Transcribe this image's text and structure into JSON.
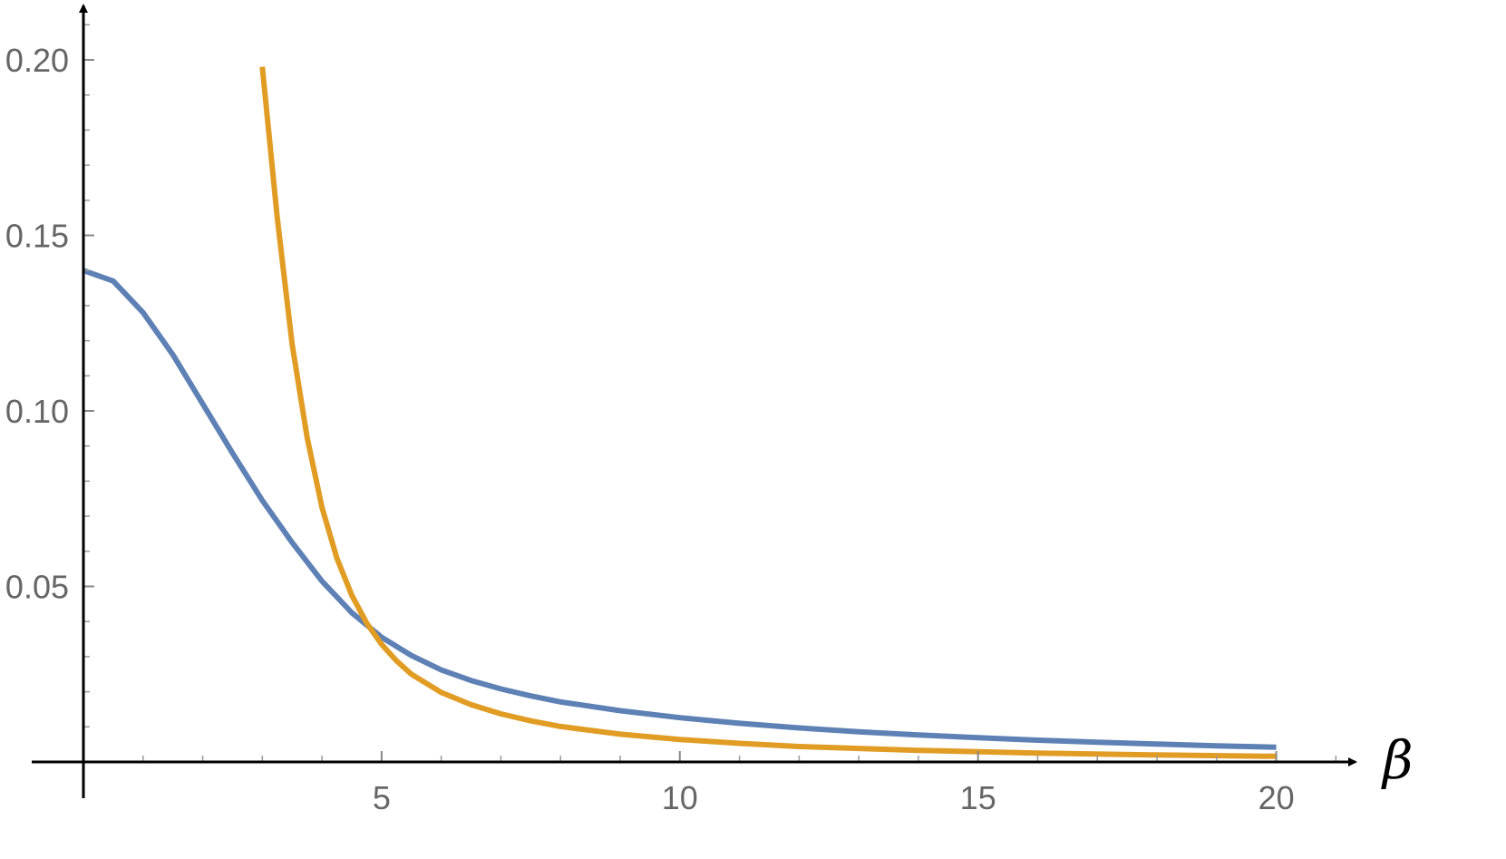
{
  "chart_data": {
    "type": "line",
    "title": "",
    "xlabel": "β",
    "ylabel": "",
    "xlim": [
      0,
      21.5
    ],
    "ylim": [
      0,
      0.21
    ],
    "grid": false,
    "legend": "none",
    "x_ticks": [
      5,
      10,
      15,
      20
    ],
    "x_tick_labels": [
      "5",
      "10",
      "15",
      "20"
    ],
    "y_ticks": [
      0.05,
      0.1,
      0.15,
      0.2
    ],
    "y_tick_labels": [
      "0.05",
      "0.10",
      "0.15",
      "0.20"
    ],
    "series": [
      {
        "color": "#5e81b5",
        "x": [
          0,
          0.5,
          1,
          1.5,
          2,
          2.5,
          3,
          3.5,
          4,
          4.5,
          5,
          5.5,
          6,
          6.5,
          7,
          7.5,
          8,
          9,
          10,
          11,
          12,
          13,
          14,
          15,
          16,
          17,
          18,
          19,
          20
        ],
        "y": [
          0.14,
          0.137,
          0.128,
          0.116,
          0.102,
          0.088,
          0.0745,
          0.0625,
          0.0515,
          0.0425,
          0.0355,
          0.0303,
          0.0262,
          0.0232,
          0.0208,
          0.0188,
          0.0171,
          0.0146,
          0.0126,
          0.011,
          0.0097,
          0.0086,
          0.0077,
          0.0069,
          0.0062,
          0.0056,
          0.0051,
          0.0046,
          0.0042
        ]
      },
      {
        "color": "#e19c24",
        "x": [
          3,
          3.25,
          3.5,
          3.75,
          4,
          4.25,
          4.5,
          4.75,
          5,
          5.25,
          5.5,
          6,
          6.5,
          7,
          7.5,
          8,
          9,
          10,
          11,
          12,
          14,
          16,
          18,
          20
        ],
        "y": [
          0.198,
          0.155,
          0.119,
          0.0925,
          0.0725,
          0.058,
          0.0475,
          0.0395,
          0.0335,
          0.0288,
          0.025,
          0.0198,
          0.0163,
          0.0137,
          0.0117,
          0.0101,
          0.0079,
          0.0064,
          0.0053,
          0.0044,
          0.0033,
          0.0025,
          0.002,
          0.0016
        ]
      }
    ]
  }
}
